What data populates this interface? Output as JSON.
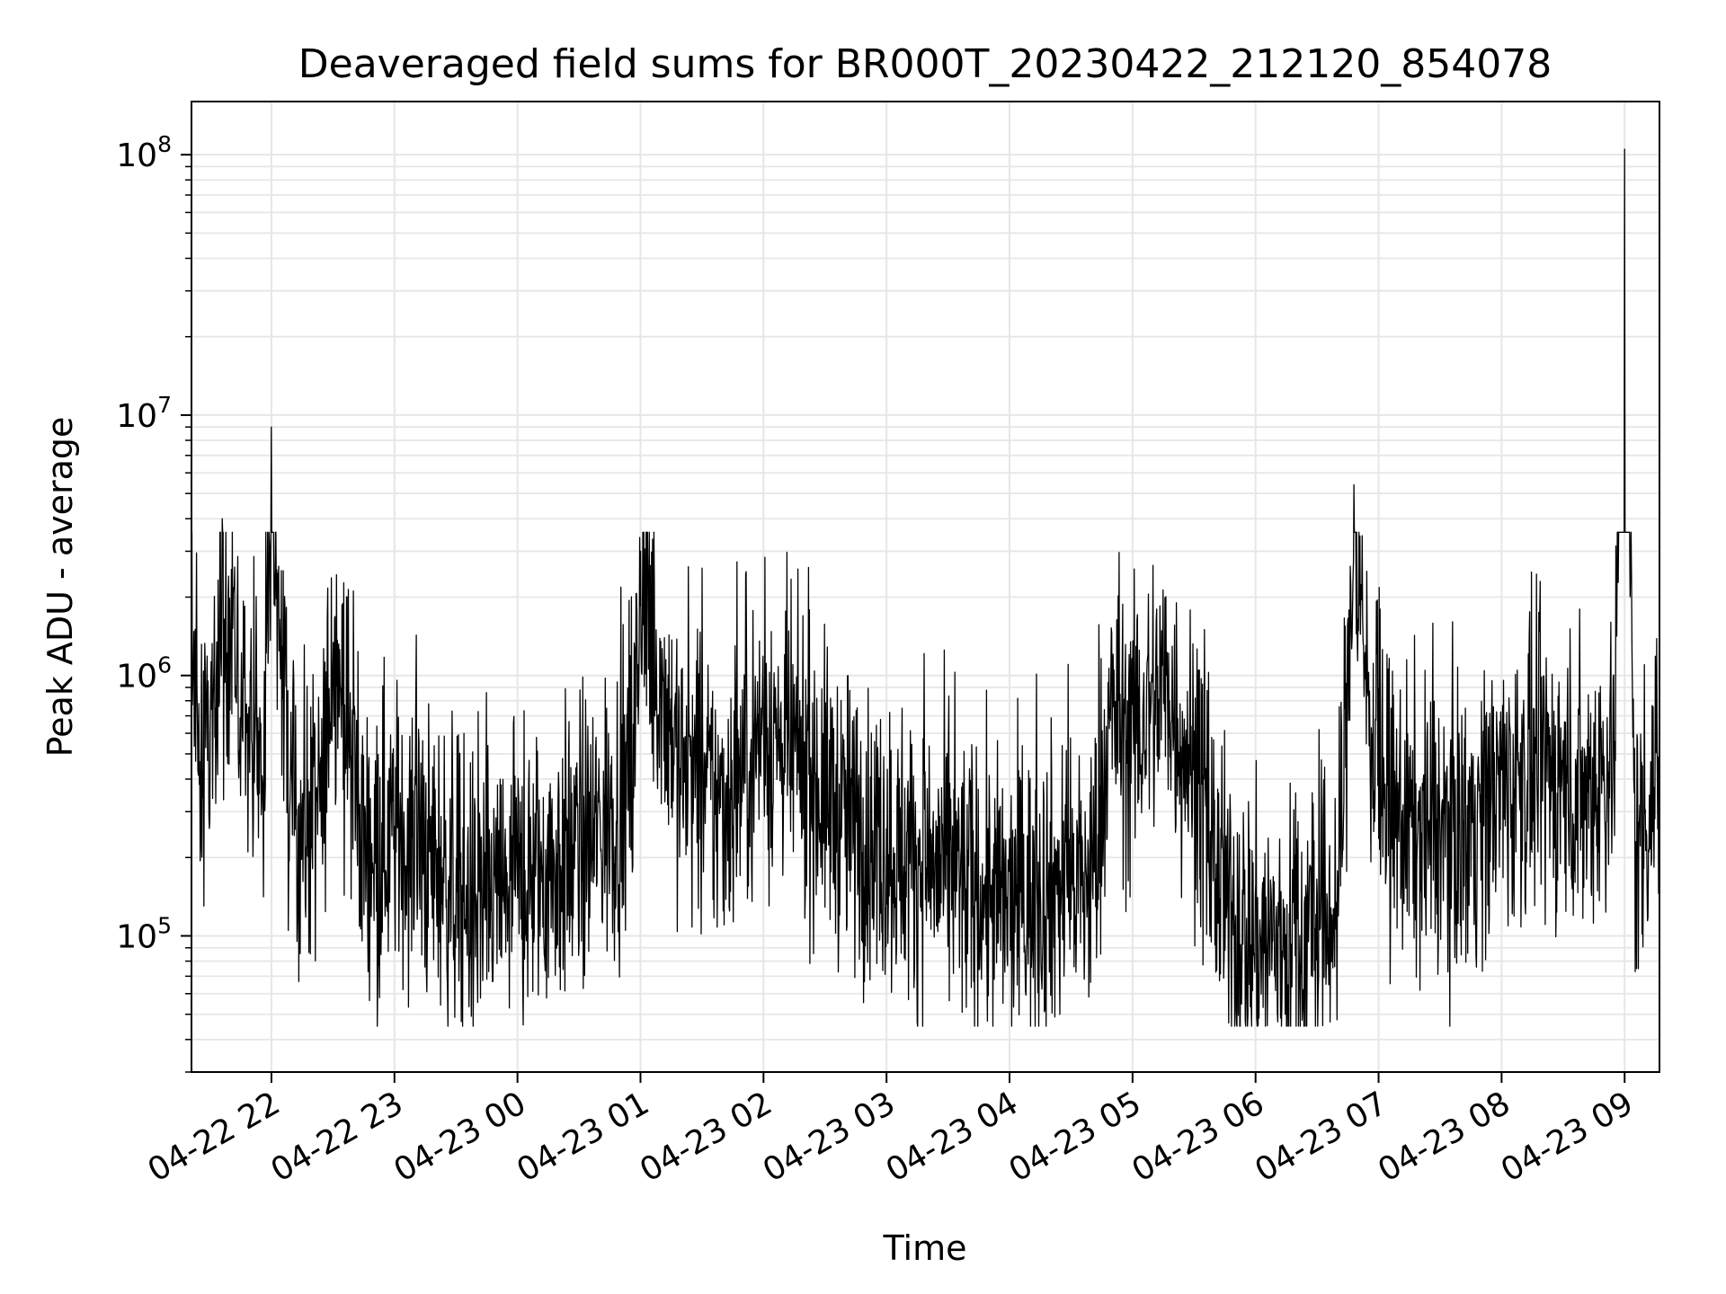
{
  "chart_data": {
    "type": "line",
    "title": "Deaveraged field sums for BR000T_20230422_212120_854078",
    "xlabel": "Time",
    "ylabel": "Peak ADU - average",
    "yscale": "log",
    "ylim": [
      30000,
      160000000
    ],
    "xlim": [
      "2023-04-22 21:21",
      "2023-04-23 09:17"
    ],
    "grid": true,
    "line_color": "#000000",
    "grid_color": "#e6e6e6",
    "x_ticks": [
      "04-22 22",
      "04-22 23",
      "04-23 00",
      "04-23 01",
      "04-23 02",
      "04-23 03",
      "04-23 04",
      "04-23 05",
      "04-23 06",
      "04-23 07",
      "04-23 08",
      "04-23 09"
    ],
    "y_ticks": [
      {
        "value": 100000,
        "base": "10",
        "exp": "5"
      },
      {
        "value": 1000000,
        "base": "10",
        "exp": "6"
      },
      {
        "value": 10000000,
        "base": "10",
        "exp": "7"
      },
      {
        "value": 100000000,
        "base": "10",
        "exp": "8"
      }
    ],
    "series": [
      {
        "x": [
          "2023-04-22 21:21",
          "2023-04-22 21:30",
          "2023-04-22 21:36",
          "2023-04-22 21:45",
          "2023-04-22 21:56",
          "2023-04-22 22:00",
          "2023-04-22 22:10",
          "2023-04-22 22:25",
          "2023-04-22 22:30",
          "2023-04-22 22:45",
          "2023-04-22 23:00",
          "2023-04-22 23:20",
          "2023-04-22 23:40",
          "2023-04-23 00:00",
          "2023-04-23 00:20",
          "2023-04-23 00:40",
          "2023-04-23 00:56",
          "2023-04-23 01:00",
          "2023-04-23 01:20",
          "2023-04-23 01:40",
          "2023-04-23 02:00",
          "2023-04-23 02:20",
          "2023-04-23 02:40",
          "2023-04-23 03:00",
          "2023-04-23 03:20",
          "2023-04-23 03:40",
          "2023-04-23 04:00",
          "2023-04-23 04:20",
          "2023-04-23 04:40",
          "2023-04-23 04:50",
          "2023-04-23 05:00",
          "2023-04-23 05:15",
          "2023-04-23 05:30",
          "2023-04-23 05:45",
          "2023-04-23 06:00",
          "2023-04-23 06:20",
          "2023-04-23 06:40",
          "2023-04-23 06:48",
          "2023-04-23 07:00",
          "2023-04-23 07:20",
          "2023-04-23 07:40",
          "2023-04-23 08:00",
          "2023-04-23 08:20",
          "2023-04-23 08:40",
          "2023-04-23 08:55",
          "2023-04-23 09:00",
          "2023-04-23 09:05",
          "2023-04-23 09:17"
        ],
        "y": [
          1200000,
          700000,
          4000000,
          1000000,
          600000,
          9000000,
          400000,
          500000,
          2500000,
          350000,
          400000,
          300000,
          200000,
          250000,
          300000,
          400000,
          600000,
          3000000,
          700000,
          500000,
          1000000,
          700000,
          450000,
          350000,
          300000,
          250000,
          200000,
          250000,
          250000,
          1200000,
          900000,
          1500000,
          700000,
          200000,
          150000,
          150000,
          200000,
          5400000,
          500000,
          400000,
          400000,
          600000,
          700000,
          550000,
          800000,
          105000000,
          350000,
          700000
        ]
      }
    ]
  }
}
